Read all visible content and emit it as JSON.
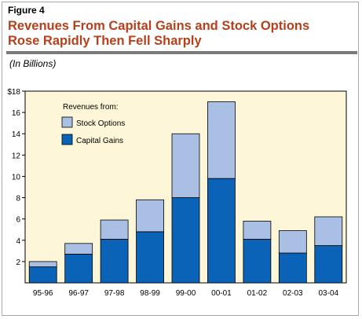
{
  "figure_label": "Figure 4",
  "title_line1": "Revenues From Capital Gains and Stock Options",
  "title_line2": "Rose Rapidly Then Fell Sharply",
  "subtitle": "(In Billions)",
  "colors": {
    "stock_options": "#a9bfe3",
    "capital_gains": "#0b63b8",
    "title": "#b5401c",
    "plot_background": "#fdf6d8"
  },
  "chart_data": {
    "type": "bar",
    "stacked": true,
    "categories": [
      "95-96",
      "96-97",
      "97-98",
      "98-99",
      "99-00",
      "00-01",
      "01-02",
      "02-03",
      "03-04"
    ],
    "series": [
      {
        "name": "Capital Gains",
        "values": [
          1.5,
          2.7,
          4.1,
          4.8,
          8.0,
          9.8,
          4.1,
          2.8,
          3.5
        ]
      },
      {
        "name": "Stock Options",
        "values": [
          0.5,
          1.0,
          1.8,
          3.0,
          6.0,
          7.2,
          1.7,
          2.1,
          2.7
        ]
      }
    ],
    "ylim": [
      0,
      18
    ],
    "yticks": [
      "2",
      "4",
      "6",
      "8",
      "10",
      "12",
      "14",
      "16",
      "$18"
    ],
    "legend": {
      "title": "Revenues from:",
      "entries": [
        "Stock Options",
        "Capital Gains"
      ],
      "placement": "top-left"
    },
    "grid": false
  }
}
